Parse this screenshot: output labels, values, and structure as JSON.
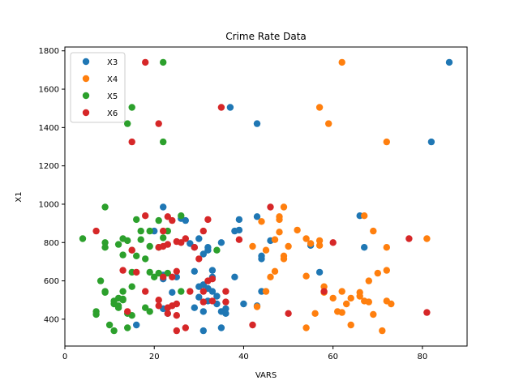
{
  "chart_data": {
    "type": "scatter",
    "title": "Crime Rate Data",
    "xlabel": "VARS",
    "ylabel": "X1",
    "xlim": [
      0,
      90
    ],
    "ylim": [
      260,
      1820
    ],
    "xticks": [
      0,
      20,
      40,
      60,
      80
    ],
    "yticks": [
      400,
      600,
      800,
      1000,
      1200,
      1400,
      1600,
      1800
    ],
    "grid": false,
    "legend_position": "top-left",
    "series": [
      {
        "name": "X3",
        "color": "#1f77b4",
        "points": [
          [
            86,
            1740
          ],
          [
            82,
            1325
          ],
          [
            37,
            1505
          ],
          [
            43,
            1420
          ],
          [
            66,
            940
          ],
          [
            67,
            775
          ],
          [
            57,
            645
          ],
          [
            55,
            785
          ],
          [
            22,
            985
          ],
          [
            20,
            860
          ],
          [
            27,
            915
          ],
          [
            26,
            925
          ],
          [
            30,
            820
          ],
          [
            29,
            775
          ],
          [
            28,
            795
          ],
          [
            32,
            775
          ],
          [
            32,
            760
          ],
          [
            31,
            740
          ],
          [
            33,
            655
          ],
          [
            33,
            620
          ],
          [
            29,
            650
          ],
          [
            30,
            570
          ],
          [
            31,
            580
          ],
          [
            32,
            560
          ],
          [
            33,
            545
          ],
          [
            34,
            520
          ],
          [
            30,
            515
          ],
          [
            32,
            495
          ],
          [
            34,
            480
          ],
          [
            29,
            460
          ],
          [
            31,
            440
          ],
          [
            35,
            440
          ],
          [
            36,
            455
          ],
          [
            36,
            430
          ],
          [
            39,
            920
          ],
          [
            39,
            865
          ],
          [
            38,
            860
          ],
          [
            43,
            935
          ],
          [
            44,
            730
          ],
          [
            44,
            715
          ],
          [
            46,
            810
          ],
          [
            44,
            545
          ],
          [
            40,
            480
          ],
          [
            38,
            620
          ],
          [
            35,
            800
          ],
          [
            35,
            355
          ],
          [
            31,
            340
          ],
          [
            22,
            630
          ],
          [
            22,
            455
          ],
          [
            16,
            370
          ],
          [
            23,
            430
          ],
          [
            25,
            620
          ],
          [
            24,
            540
          ],
          [
            22,
            610
          ],
          [
            43,
            470
          ]
        ]
      },
      {
        "name": "X4",
        "color": "#ff7f0e",
        "points": [
          [
            62,
            1740
          ],
          [
            57,
            1505
          ],
          [
            59,
            1420
          ],
          [
            72,
            1325
          ],
          [
            67,
            940
          ],
          [
            49,
            985
          ],
          [
            48,
            935
          ],
          [
            48,
            920
          ],
          [
            52,
            865
          ],
          [
            48,
            855
          ],
          [
            49,
            730
          ],
          [
            47,
            815
          ],
          [
            54,
            820
          ],
          [
            55,
            795
          ],
          [
            57,
            810
          ],
          [
            57,
            785
          ],
          [
            44,
            910
          ],
          [
            42,
            780
          ],
          [
            45,
            760
          ],
          [
            49,
            715
          ],
          [
            47,
            650
          ],
          [
            46,
            620
          ],
          [
            45,
            545
          ],
          [
            50,
            780
          ],
          [
            54,
            625
          ],
          [
            58,
            570
          ],
          [
            58,
            540
          ],
          [
            60,
            510
          ],
          [
            62,
            545
          ],
          [
            61,
            440
          ],
          [
            62,
            435
          ],
          [
            64,
            510
          ],
          [
            64,
            370
          ],
          [
            63,
            480
          ],
          [
            66,
            540
          ],
          [
            66,
            520
          ],
          [
            67,
            495
          ],
          [
            68,
            490
          ],
          [
            68,
            600
          ],
          [
            69,
            860
          ],
          [
            70,
            640
          ],
          [
            72,
            655
          ],
          [
            72,
            775
          ],
          [
            72,
            495
          ],
          [
            73,
            480
          ],
          [
            69,
            425
          ],
          [
            71,
            340
          ],
          [
            81,
            820
          ],
          [
            56,
            430
          ],
          [
            54,
            355
          ],
          [
            43,
            465
          ]
        ]
      },
      {
        "name": "X5",
        "color": "#2ca02c",
        "points": [
          [
            22,
            1740
          ],
          [
            15,
            1505
          ],
          [
            14,
            1420
          ],
          [
            22,
            1325
          ],
          [
            9,
            985
          ],
          [
            26,
            940
          ],
          [
            21,
            915
          ],
          [
            16,
            920
          ],
          [
            19,
            860
          ],
          [
            23,
            860
          ],
          [
            17,
            860
          ],
          [
            22,
            825
          ],
          [
            13,
            820
          ],
          [
            14,
            810
          ],
          [
            17,
            815
          ],
          [
            9,
            800
          ],
          [
            4,
            820
          ],
          [
            12,
            790
          ],
          [
            9,
            775
          ],
          [
            19,
            780
          ],
          [
            21,
            775
          ],
          [
            15,
            760
          ],
          [
            13,
            735
          ],
          [
            16,
            730
          ],
          [
            18,
            715
          ],
          [
            8,
            600
          ],
          [
            15,
            645
          ],
          [
            19,
            645
          ],
          [
            20,
            620
          ],
          [
            21,
            640
          ],
          [
            23,
            640
          ],
          [
            26,
            545
          ],
          [
            9,
            545
          ],
          [
            9,
            540
          ],
          [
            7,
            440
          ],
          [
            7,
            425
          ],
          [
            10,
            370
          ],
          [
            11,
            340
          ],
          [
            11,
            495
          ],
          [
            11,
            480
          ],
          [
            12,
            510
          ],
          [
            13,
            505
          ],
          [
            12,
            470
          ],
          [
            12,
            460
          ],
          [
            13,
            545
          ],
          [
            15,
            570
          ],
          [
            14,
            355
          ],
          [
            14,
            430
          ],
          [
            15,
            420
          ],
          [
            18,
            460
          ],
          [
            19,
            440
          ],
          [
            34,
            760
          ],
          [
            13,
            500
          ]
        ]
      },
      {
        "name": "X6",
        "color": "#d62728",
        "points": [
          [
            18,
            1740
          ],
          [
            35,
            1505
          ],
          [
            21,
            1420
          ],
          [
            15,
            1325
          ],
          [
            18,
            940
          ],
          [
            46,
            985
          ],
          [
            23,
            935
          ],
          [
            24,
            915
          ],
          [
            22,
            860
          ],
          [
            32,
            920
          ],
          [
            31,
            860
          ],
          [
            27,
            820
          ],
          [
            39,
            815
          ],
          [
            25,
            805
          ],
          [
            23,
            790
          ],
          [
            22,
            780
          ],
          [
            21,
            775
          ],
          [
            7,
            860
          ],
          [
            15,
            760
          ],
          [
            26,
            800
          ],
          [
            29,
            775
          ],
          [
            30,
            715
          ],
          [
            32,
            600
          ],
          [
            33,
            610
          ],
          [
            13,
            655
          ],
          [
            16,
            645
          ],
          [
            18,
            545
          ],
          [
            22,
            620
          ],
          [
            24,
            620
          ],
          [
            25,
            650
          ],
          [
            28,
            545
          ],
          [
            31,
            545
          ],
          [
            36,
            545
          ],
          [
            31,
            490
          ],
          [
            33,
            495
          ],
          [
            25,
            480
          ],
          [
            21,
            470
          ],
          [
            21,
            500
          ],
          [
            23,
            460
          ],
          [
            24,
            470
          ],
          [
            27,
            355
          ],
          [
            25,
            340
          ],
          [
            25,
            420
          ],
          [
            60,
            800
          ],
          [
            58,
            545
          ],
          [
            50,
            430
          ],
          [
            77,
            820
          ],
          [
            81,
            435
          ],
          [
            42,
            370
          ],
          [
            36,
            490
          ],
          [
            14,
            440
          ],
          [
            23,
            430
          ]
        ]
      }
    ]
  }
}
